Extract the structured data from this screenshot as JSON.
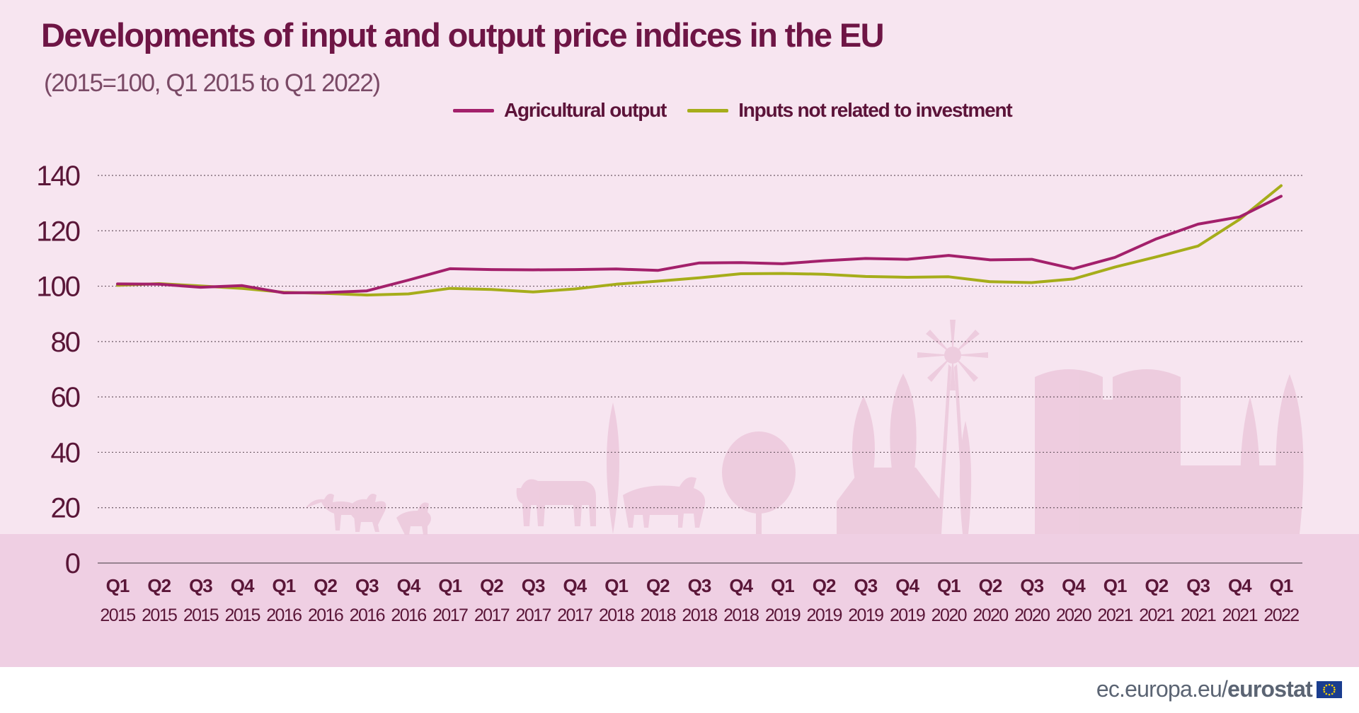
{
  "chart_data": {
    "type": "line",
    "title": "Developments of input and output price indices in the EU",
    "subtitle": "(2015=100, Q1 2015 to Q1 2022)",
    "x_quarter_labels": [
      "Q1",
      "Q2",
      "Q3",
      "Q4",
      "Q1",
      "Q2",
      "Q3",
      "Q4",
      "Q1",
      "Q2",
      "Q3",
      "Q4",
      "Q1",
      "Q2",
      "Q3",
      "Q4",
      "Q1",
      "Q2",
      "Q3",
      "Q4",
      "Q1",
      "Q2",
      "Q3",
      "Q4",
      "Q1",
      "Q2",
      "Q3",
      "Q4",
      "Q1"
    ],
    "x_year_labels": [
      "2015",
      "2015",
      "2015",
      "2015",
      "2016",
      "2016",
      "2016",
      "2016",
      "2017",
      "2017",
      "2017",
      "2017",
      "2018",
      "2018",
      "2018",
      "2018",
      "2019",
      "2019",
      "2019",
      "2019",
      "2020",
      "2020",
      "2020",
      "2020",
      "2021",
      "2021",
      "2021",
      "2021",
      "2022"
    ],
    "y_ticks": [
      "0",
      "20",
      "40",
      "60",
      "80",
      "100",
      "120",
      "140"
    ],
    "ylim": [
      0,
      140
    ],
    "grid": "horizontal dotted",
    "legend_position": "top-center",
    "series": [
      {
        "name": "Agricultural output",
        "color": "#a3206b",
        "values": [
          100.8,
          100.7,
          99.6,
          100.2,
          97.6,
          97.7,
          98.3,
          102.2,
          106.3,
          106.0,
          105.9,
          106.0,
          106.2,
          105.7,
          108.4,
          108.5,
          108.1,
          109.2,
          110.0,
          109.7,
          111.1,
          109.5,
          109.7,
          106.3,
          110.4,
          117.1,
          122.4,
          125.0,
          132.5
        ]
      },
      {
        "name": "Inputs not related to investment",
        "color": "#a6ad1a",
        "values": [
          100.3,
          100.9,
          100.1,
          99.2,
          97.8,
          97.4,
          96.8,
          97.2,
          99.2,
          98.8,
          97.9,
          99.0,
          100.7,
          101.8,
          103.0,
          104.5,
          104.6,
          104.3,
          103.5,
          103.2,
          103.4,
          101.6,
          101.3,
          102.6,
          106.9,
          110.6,
          114.5,
          124.1,
          136.3
        ]
      }
    ]
  },
  "footer": {
    "domain": "ec.europa.eu/",
    "brand": "eurostat"
  }
}
